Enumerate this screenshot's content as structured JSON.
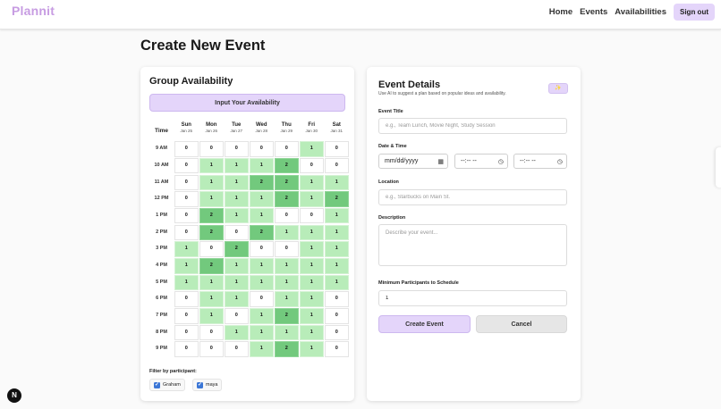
{
  "header": {
    "logo": "Plannit",
    "nav": [
      "Home",
      "Events",
      "Availabilities"
    ],
    "signout_label": "Sign out"
  },
  "page_title": "Create New Event",
  "availability": {
    "title": "Group Availability",
    "input_button": "Input Your Availability",
    "time_header": "Time",
    "days": [
      {
        "name": "Sun",
        "date": "Jan 25"
      },
      {
        "name": "Mon",
        "date": "Jan 26"
      },
      {
        "name": "Tue",
        "date": "Jan 27"
      },
      {
        "name": "Wed",
        "date": "Jan 28"
      },
      {
        "name": "Thu",
        "date": "Jan 29"
      },
      {
        "name": "Fri",
        "date": "Jan 30"
      },
      {
        "name": "Sat",
        "date": "Jan 31"
      }
    ],
    "rows": [
      {
        "time": "9 AM",
        "values": [
          0,
          0,
          0,
          0,
          0,
          1,
          0
        ]
      },
      {
        "time": "10 AM",
        "values": [
          0,
          1,
          1,
          1,
          2,
          0,
          0
        ]
      },
      {
        "time": "11 AM",
        "values": [
          0,
          1,
          1,
          2,
          2,
          1,
          1
        ]
      },
      {
        "time": "12 PM",
        "values": [
          0,
          1,
          1,
          1,
          2,
          1,
          2
        ]
      },
      {
        "time": "1 PM",
        "values": [
          0,
          2,
          1,
          1,
          0,
          0,
          1
        ]
      },
      {
        "time": "2 PM",
        "values": [
          0,
          2,
          0,
          2,
          1,
          1,
          1
        ]
      },
      {
        "time": "3 PM",
        "values": [
          1,
          0,
          2,
          0,
          0,
          1,
          1
        ]
      },
      {
        "time": "4 PM",
        "values": [
          1,
          2,
          1,
          1,
          1,
          1,
          1
        ]
      },
      {
        "time": "5 PM",
        "values": [
          1,
          1,
          1,
          1,
          1,
          1,
          1
        ]
      },
      {
        "time": "6 PM",
        "values": [
          0,
          1,
          1,
          0,
          1,
          1,
          0
        ]
      },
      {
        "time": "7 PM",
        "values": [
          0,
          1,
          0,
          1,
          2,
          1,
          0
        ]
      },
      {
        "time": "8 PM",
        "values": [
          0,
          0,
          1,
          1,
          1,
          1,
          0
        ]
      },
      {
        "time": "9 PM",
        "values": [
          0,
          0,
          0,
          1,
          2,
          1,
          0
        ]
      }
    ],
    "filter_label": "Filter by participant:",
    "participants": [
      {
        "name": "Graham",
        "checked": true
      },
      {
        "name": "maya",
        "checked": true
      }
    ],
    "colors": {
      "zero": "#ffffff",
      "one": "#b8ecb9",
      "two": "#72c97d"
    }
  },
  "details": {
    "title": "Event Details",
    "subtitle": "Use AI to suggest a plan based on popular ideas and availability.",
    "ai_button": "✨",
    "title_label": "Event Title",
    "title_placeholder": "e.g., Team Lunch, Movie Night, Study Session",
    "datetime_label": "Date & Time",
    "date_value": "mm/dd/yyyy",
    "start_time": "--:-- --",
    "end_time": "--:-- --",
    "location_label": "Location",
    "location_placeholder": "e.g., Starbucks on Main St.",
    "description_label": "Description",
    "description_placeholder": "Describe your event...",
    "min_label": "Minimum Participants to Schedule",
    "min_value": "1",
    "create_button": "Create Event",
    "cancel_button": "Cancel"
  },
  "dev_badge": "N"
}
